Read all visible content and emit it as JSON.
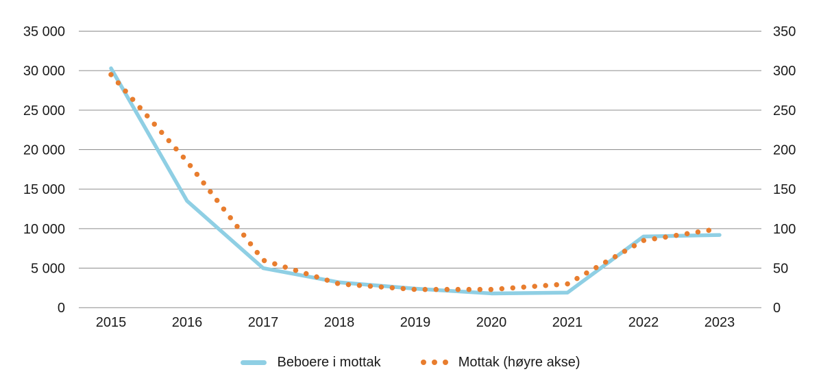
{
  "chart_data": {
    "type": "line",
    "title": "",
    "categories": [
      "2015",
      "2016",
      "2017",
      "2018",
      "2019",
      "2020",
      "2021",
      "2022",
      "2023"
    ],
    "series": [
      {
        "name": "Beboere i mottak",
        "axis": "left",
        "line_style": "solid",
        "color": "#8FCFE4",
        "values": [
          30300,
          13500,
          5000,
          3200,
          2400,
          1800,
          1900,
          9000,
          9200
        ]
      },
      {
        "name": "Mottak (høyre akse)",
        "axis": "right",
        "line_style": "dotted",
        "color": "#E87D2E",
        "values": [
          295,
          185,
          60,
          30,
          23,
          23,
          30,
          85,
          100
        ]
      }
    ],
    "left_axis": {
      "min": 0,
      "max": 35000,
      "tick_step": 5000,
      "tick_labels": [
        "0",
        "5 000",
        "10 000",
        "15 000",
        "20 000",
        "25 000",
        "30 000",
        "35 000"
      ]
    },
    "right_axis": {
      "min": 0,
      "max": 350,
      "tick_step": 50,
      "tick_labels": [
        "0",
        "50",
        "100",
        "150",
        "200",
        "250",
        "300",
        "350"
      ]
    },
    "grid": "horizontal",
    "gridline_color": "#8C8C8C",
    "text_color": "#1a1a1a",
    "legend_position": "bottom"
  }
}
